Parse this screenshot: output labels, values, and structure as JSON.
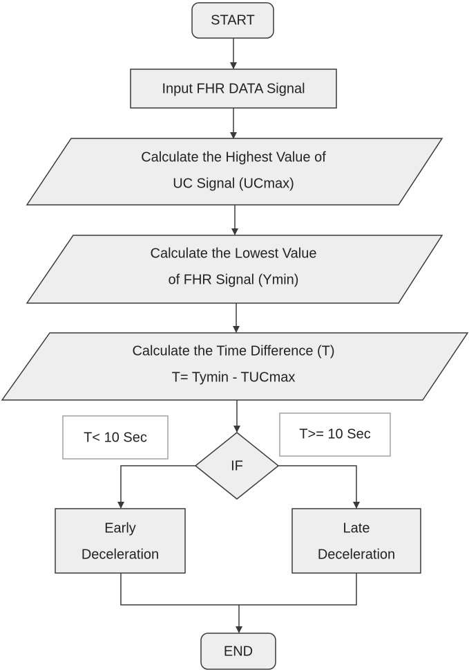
{
  "nodes": {
    "start": {
      "label": "START"
    },
    "input": {
      "label": "Input FHR DATA Signal"
    },
    "calc_ucmax": {
      "lines": [
        "Calculate the Highest Value of",
        "UC Signal (UCmax)"
      ]
    },
    "calc_ymin": {
      "lines": [
        "Calculate the Lowest Value",
        "of FHR Signal (Ymin)"
      ]
    },
    "calc_time": {
      "lines": [
        "Calculate the Time Difference (T)",
        "T= Tymin - TUCmax"
      ]
    },
    "decision": {
      "label": "IF"
    },
    "cond_left": {
      "label": "T< 10 Sec"
    },
    "cond_right": {
      "label": "T>= 10 Sec"
    },
    "early": {
      "lines": [
        "Early",
        "Deceleration"
      ]
    },
    "late": {
      "lines": [
        "Late",
        "Deceleration"
      ]
    },
    "end": {
      "label": "END"
    }
  },
  "colors": {
    "fill": "#eeeeee",
    "stroke": "#3a3a3a",
    "text": "#222222"
  }
}
